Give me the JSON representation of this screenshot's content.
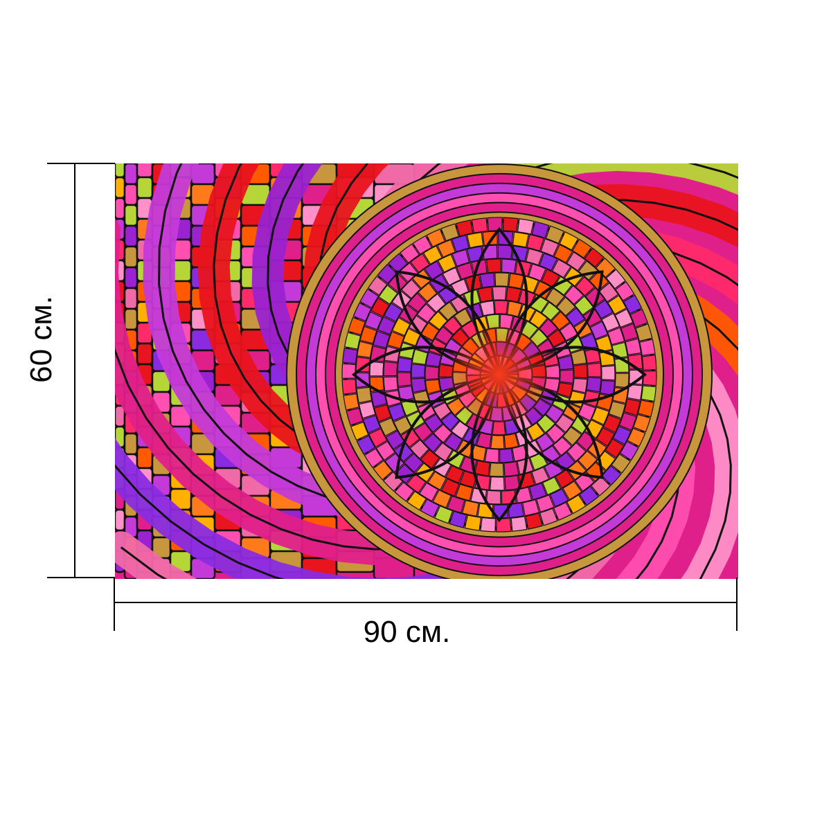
{
  "product": {
    "height_label": "60 см.",
    "width_label": "90 см.",
    "artwork_icon": "stained-glass-mosaic-illustration",
    "colors": {
      "magenta": "#e0208a",
      "pink": "#ff4fb0",
      "orange": "#ff7a1a",
      "red": "#e8141e",
      "purple": "#9a22d0",
      "gold": "#c8963c",
      "lime": "#b6d638",
      "violet": "#c43ad8",
      "lead": "#111111"
    }
  }
}
